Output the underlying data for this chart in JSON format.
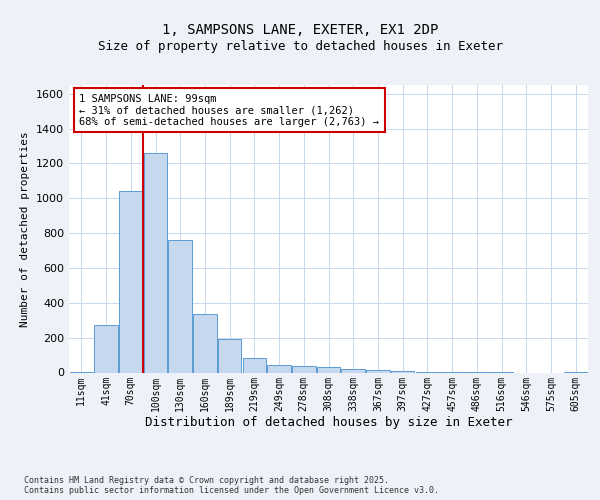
{
  "title1": "1, SAMPSONS LANE, EXETER, EX1 2DP",
  "title2": "Size of property relative to detached houses in Exeter",
  "xlabel": "Distribution of detached houses by size in Exeter",
  "ylabel": "Number of detached properties",
  "categories": [
    "11sqm",
    "41sqm",
    "70sqm",
    "100sqm",
    "130sqm",
    "160sqm",
    "189sqm",
    "219sqm",
    "249sqm",
    "278sqm",
    "308sqm",
    "338sqm",
    "367sqm",
    "397sqm",
    "427sqm",
    "457sqm",
    "486sqm",
    "516sqm",
    "546sqm",
    "575sqm",
    "605sqm"
  ],
  "values": [
    5,
    275,
    1040,
    1262,
    760,
    335,
    190,
    85,
    45,
    35,
    30,
    20,
    15,
    8,
    4,
    3,
    1,
    1,
    0,
    0,
    5
  ],
  "bar_color": "#c5d8ed",
  "bar_edge_color": "#5b9bd5",
  "red_line_index": 3,
  "annotation_line1": "1 SAMPSONS LANE: 99sqm",
  "annotation_line2": "← 31% of detached houses are smaller (1,262)",
  "annotation_line3": "68% of semi-detached houses are larger (2,763) →",
  "annotation_box_color": "#ffffff",
  "annotation_box_edge_color": "#cc0000",
  "footer": "Contains HM Land Registry data © Crown copyright and database right 2025.\nContains public sector information licensed under the Open Government Licence v3.0.",
  "ylim": [
    0,
    1650
  ],
  "yticks": [
    0,
    200,
    400,
    600,
    800,
    1000,
    1200,
    1400,
    1600
  ],
  "background_color": "#eef2f8",
  "plot_background": "#ffffff",
  "grid_color": "#c8d8ed",
  "title1_fontsize": 10,
  "title2_fontsize": 9,
  "ylabel_fontsize": 8,
  "xlabel_fontsize": 9,
  "tick_fontsize": 7,
  "footer_fontsize": 6,
  "annotation_fontsize": 7.5
}
